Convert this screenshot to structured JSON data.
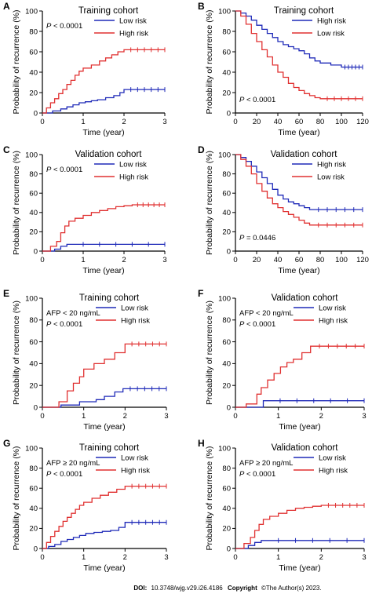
{
  "footer": {
    "doi_label": "DOI:",
    "doi_value": "10.3748/wjg.v29.i26.4186",
    "copyright_label": "Copyright",
    "copyright_value": "©The Author(s) 2023."
  },
  "chart_data": [
    {
      "panel": "A",
      "type": "line",
      "title": "Training cohort",
      "xlabel": "Time (year)",
      "ylabel": "Probability of recurrence (%)",
      "xlim": [
        0,
        3
      ],
      "ylim": [
        0,
        100
      ],
      "xticks": [
        "0",
        "1",
        "2",
        "3"
      ],
      "yticks": [
        "0",
        "20",
        "40",
        "60",
        "80",
        "100"
      ],
      "annotations": [
        "P < 0.0001"
      ],
      "series": [
        {
          "name": "Low risk",
          "color": "#1f2ab8",
          "x": [
            0,
            0.25,
            0.45,
            0.6,
            0.75,
            0.9,
            1.05,
            1.2,
            1.35,
            1.55,
            1.75,
            1.9,
            2.0,
            3.0
          ],
          "y": [
            0,
            2,
            4,
            6,
            8,
            10,
            11,
            12,
            13,
            15,
            17,
            20,
            23,
            23
          ]
        },
        {
          "name": "High risk",
          "color": "#e03030",
          "x": [
            0,
            0.1,
            0.2,
            0.3,
            0.4,
            0.5,
            0.6,
            0.7,
            0.8,
            0.9,
            1.0,
            1.2,
            1.4,
            1.55,
            1.7,
            1.85,
            2.0,
            3.0
          ],
          "y": [
            0,
            5,
            10,
            14,
            19,
            23,
            28,
            32,
            37,
            41,
            44,
            47,
            51,
            54,
            57,
            60,
            62,
            62
          ]
        }
      ]
    },
    {
      "panel": "B",
      "type": "line",
      "title": "Training cohort",
      "xlabel": "Time (year)",
      "ylabel": "Probability of recurrence (%)",
      "xlim": [
        0,
        120
      ],
      "ylim": [
        0,
        100
      ],
      "xticks": [
        "0",
        "20",
        "40",
        "60",
        "80",
        "100",
        "120"
      ],
      "yticks": [
        "0",
        "20",
        "40",
        "60",
        "80",
        "100"
      ],
      "annotations": [
        "P < 0.0001"
      ],
      "series": [
        {
          "name": "High risk",
          "color": "#1f2ab8",
          "x": [
            0,
            5,
            10,
            15,
            20,
            25,
            30,
            35,
            40,
            45,
            50,
            55,
            60,
            65,
            70,
            75,
            80,
            90,
            100,
            120
          ],
          "y": [
            100,
            98,
            95,
            91,
            86,
            82,
            78,
            74,
            70,
            67,
            65,
            63,
            61,
            58,
            54,
            51,
            49,
            47,
            45,
            45
          ]
        },
        {
          "name": "Low risk",
          "color": "#e03030",
          "x": [
            0,
            5,
            10,
            15,
            20,
            25,
            30,
            35,
            40,
            45,
            50,
            55,
            60,
            65,
            70,
            75,
            80,
            120
          ],
          "y": [
            100,
            95,
            87,
            78,
            70,
            62,
            55,
            47,
            40,
            35,
            29,
            25,
            22,
            19,
            17,
            15,
            14,
            14
          ]
        }
      ]
    },
    {
      "panel": "C",
      "type": "line",
      "title": "Validation cohort",
      "xlabel": "Time (year)",
      "ylabel": "Probability of recurrence (%)",
      "xlim": [
        0,
        3
      ],
      "ylim": [
        0,
        100
      ],
      "xticks": [
        "0",
        "1",
        "2",
        "3"
      ],
      "yticks": [
        "0",
        "20",
        "40",
        "60",
        "80",
        "100"
      ],
      "annotations": [
        "P < 0.0001"
      ],
      "series": [
        {
          "name": "Low risk",
          "color": "#1f2ab8",
          "x": [
            0,
            0.3,
            0.45,
            0.6,
            3.0
          ],
          "y": [
            0,
            2,
            5,
            7,
            7
          ]
        },
        {
          "name": "High risk",
          "color": "#e03030",
          "x": [
            0,
            0.2,
            0.35,
            0.45,
            0.55,
            0.65,
            0.8,
            1.0,
            1.2,
            1.4,
            1.6,
            1.8,
            2.0,
            2.2,
            3.0
          ],
          "y": [
            0,
            5,
            10,
            19,
            26,
            31,
            34,
            37,
            40,
            42,
            44,
            46,
            47,
            48,
            48
          ]
        }
      ]
    },
    {
      "panel": "D",
      "type": "line",
      "title": "Validation cohort",
      "xlabel": "Time (year)",
      "ylabel": "Probability of recurrence (%)",
      "xlim": [
        0,
        120
      ],
      "ylim": [
        0,
        100
      ],
      "xticks": [
        "0",
        "20",
        "40",
        "60",
        "80",
        "100",
        "120"
      ],
      "yticks": [
        "0",
        "20",
        "40",
        "60",
        "80",
        "100"
      ],
      "annotations": [
        "P = 0.0446"
      ],
      "series": [
        {
          "name": "High risk",
          "color": "#1f2ab8",
          "x": [
            0,
            5,
            10,
            15,
            20,
            25,
            30,
            35,
            40,
            45,
            50,
            55,
            60,
            65,
            70,
            120
          ],
          "y": [
            100,
            97,
            93,
            88,
            82,
            76,
            70,
            64,
            58,
            54,
            51,
            49,
            47,
            45,
            43,
            43
          ]
        },
        {
          "name": "Low risk",
          "color": "#e03030",
          "x": [
            0,
            5,
            10,
            15,
            20,
            25,
            30,
            35,
            40,
            45,
            50,
            55,
            60,
            65,
            70,
            120
          ],
          "y": [
            100,
            95,
            88,
            80,
            70,
            62,
            55,
            49,
            45,
            41,
            38,
            35,
            32,
            29,
            27,
            27
          ]
        }
      ]
    },
    {
      "panel": "E",
      "type": "line",
      "title": "Training cohort",
      "xlabel": "Time (year)",
      "ylabel": "Probability of recurrence (%)",
      "xlim": [
        0,
        3
      ],
      "ylim": [
        0,
        100
      ],
      "xticks": [
        "0",
        "1",
        "2",
        "3"
      ],
      "yticks": [
        "0",
        "20",
        "40",
        "60",
        "80",
        "100"
      ],
      "annotations": [
        "AFP < 20 ng/mL",
        "P < 0.0001"
      ],
      "series": [
        {
          "name": "Low risk",
          "color": "#1f2ab8",
          "x": [
            0,
            0.45,
            0.9,
            1.3,
            1.5,
            1.75,
            1.95,
            3.0
          ],
          "y": [
            0,
            2,
            5,
            7,
            10,
            14,
            17,
            17
          ]
        },
        {
          "name": "High risk",
          "color": "#e03030",
          "x": [
            0,
            0.4,
            0.6,
            0.75,
            0.9,
            1.0,
            1.25,
            1.5,
            1.75,
            2.0,
            3.0
          ],
          "y": [
            0,
            5,
            15,
            22,
            28,
            35,
            40,
            44,
            50,
            58,
            58
          ]
        }
      ]
    },
    {
      "panel": "F",
      "type": "line",
      "title": "Validation cohort",
      "xlabel": "Time (year)",
      "ylabel": "Probability of recurrence (%)",
      "xlim": [
        0,
        3
      ],
      "ylim": [
        0,
        100
      ],
      "xticks": [
        "0",
        "1",
        "2",
        "3"
      ],
      "yticks": [
        "0",
        "20",
        "40",
        "60",
        "80",
        "100"
      ],
      "annotations": [
        "AFP < 20 ng/mL",
        "P < 0.0001"
      ],
      "series": [
        {
          "name": "Low risk",
          "color": "#1f2ab8",
          "x": [
            0,
            0.65,
            3.0
          ],
          "y": [
            0,
            6,
            6
          ]
        },
        {
          "name": "High risk",
          "color": "#e03030",
          "x": [
            0,
            0.25,
            0.5,
            0.6,
            0.75,
            0.9,
            1.05,
            1.2,
            1.35,
            1.55,
            1.75,
            3.0
          ],
          "y": [
            0,
            3,
            12,
            18,
            25,
            31,
            37,
            41,
            44,
            50,
            56,
            56
          ]
        }
      ]
    },
    {
      "panel": "G",
      "type": "line",
      "title": "Training cohort",
      "xlabel": "Time (year)",
      "ylabel": "Probability of recurrence (%)",
      "xlim": [
        0,
        3
      ],
      "ylim": [
        0,
        100
      ],
      "xticks": [
        "0",
        "1",
        "2",
        "3"
      ],
      "yticks": [
        "0",
        "20",
        "40",
        "60",
        "80",
        "100"
      ],
      "annotations": [
        "AFP ≥ 20 ng/mL",
        "P < 0.0001"
      ],
      "series": [
        {
          "name": "Low risk",
          "color": "#1f2ab8",
          "x": [
            0,
            0.15,
            0.3,
            0.45,
            0.6,
            0.75,
            0.9,
            1.05,
            1.25,
            1.45,
            1.65,
            1.85,
            2.0,
            3.0
          ],
          "y": [
            0,
            2,
            4,
            7,
            9,
            11,
            13,
            15,
            16,
            17,
            18,
            21,
            26,
            26
          ]
        },
        {
          "name": "High risk",
          "color": "#e03030",
          "x": [
            0,
            0.1,
            0.2,
            0.3,
            0.4,
            0.5,
            0.6,
            0.7,
            0.8,
            0.9,
            1.0,
            1.2,
            1.4,
            1.6,
            1.8,
            2.0,
            3.0
          ],
          "y": [
            0,
            6,
            12,
            17,
            22,
            27,
            31,
            35,
            39,
            43,
            46,
            50,
            53,
            56,
            59,
            62,
            62
          ]
        }
      ]
    },
    {
      "panel": "H",
      "type": "line",
      "title": "Validation cohort",
      "xlabel": "Time (year)",
      "ylabel": "Probability of recurrence (%)",
      "xlim": [
        0,
        3
      ],
      "ylim": [
        0,
        100
      ],
      "xticks": [
        "0",
        "1",
        "2",
        "3"
      ],
      "yticks": [
        "0",
        "20",
        "40",
        "60",
        "80",
        "100"
      ],
      "annotations": [
        "AFP ≥ 20 ng/mL",
        "P < 0.0001"
      ],
      "series": [
        {
          "name": "Low risk",
          "color": "#1f2ab8",
          "x": [
            0,
            0.3,
            0.45,
            0.6,
            3.0
          ],
          "y": [
            0,
            3,
            6,
            8,
            8
          ]
        },
        {
          "name": "High risk",
          "color": "#e03030",
          "x": [
            0,
            0.2,
            0.35,
            0.45,
            0.55,
            0.65,
            0.8,
            1.0,
            1.2,
            1.4,
            1.6,
            1.8,
            2.0,
            3.0
          ],
          "y": [
            0,
            5,
            11,
            18,
            24,
            29,
            32,
            35,
            38,
            40,
            41,
            42,
            43,
            43
          ]
        }
      ]
    }
  ]
}
